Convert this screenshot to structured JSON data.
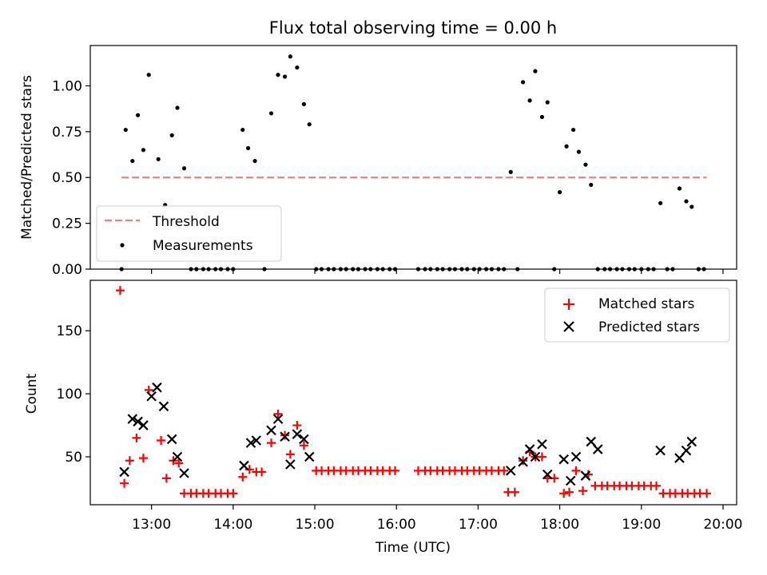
{
  "chart_data": [
    {
      "type": "scatter",
      "panel": "top",
      "title": "Flux total observing time = 0.00 h",
      "xlabel": "",
      "ylabel": "Matched/Predicted stars",
      "xlim": [
        "12:15",
        "20:10"
      ],
      "ylim": [
        0,
        1.22
      ],
      "yticks": [
        0.0,
        0.25,
        0.5,
        0.75,
        1.0
      ],
      "ytick_labels": [
        "0.00",
        "0.25",
        "0.50",
        "0.75",
        "1.00"
      ],
      "xticks": [
        "13:00",
        "14:00",
        "15:00",
        "16:00",
        "17:00",
        "18:00",
        "19:00",
        "20:00"
      ],
      "legend_position": "lower-left",
      "threshold": {
        "name": "Threshold",
        "y": 0.5,
        "x_start": "12:38",
        "x_end": "19:48",
        "color": "#f08080"
      },
      "series": [
        {
          "name": "Measurements",
          "color": "#000000",
          "marker": "dot",
          "points": [
            [
              "12:38",
              0.0
            ],
            [
              "12:41",
              0.76
            ],
            [
              "12:46",
              0.59
            ],
            [
              "12:50",
              0.84
            ],
            [
              "12:54",
              0.65
            ],
            [
              "12:58",
              1.06
            ],
            [
              "13:05",
              0.6
            ],
            [
              "13:10",
              0.35
            ],
            [
              "13:15",
              0.73
            ],
            [
              "13:19",
              0.88
            ],
            [
              "13:24",
              0.55
            ],
            [
              "13:29",
              0.0
            ],
            [
              "13:33",
              0.0
            ],
            [
              "13:38",
              0.0
            ],
            [
              "13:42",
              0.0
            ],
            [
              "13:47",
              0.0
            ],
            [
              "13:51",
              0.0
            ],
            [
              "13:56",
              0.0
            ],
            [
              "14:00",
              0.0
            ],
            [
              "14:07",
              0.76
            ],
            [
              "14:11",
              0.66
            ],
            [
              "14:16",
              0.59
            ],
            [
              "14:23",
              0.0
            ],
            [
              "14:28",
              0.85
            ],
            [
              "14:33",
              1.06
            ],
            [
              "14:38",
              1.05
            ],
            [
              "14:42",
              1.16
            ],
            [
              "14:47",
              1.1
            ],
            [
              "14:52",
              0.9
            ],
            [
              "14:56",
              0.79
            ],
            [
              "15:01",
              0.0
            ],
            [
              "15:05",
              0.0
            ],
            [
              "15:10",
              0.0
            ],
            [
              "15:14",
              0.0
            ],
            [
              "15:19",
              0.0
            ],
            [
              "15:23",
              0.0
            ],
            [
              "15:28",
              0.0
            ],
            [
              "15:32",
              0.0
            ],
            [
              "15:37",
              0.0
            ],
            [
              "15:41",
              0.0
            ],
            [
              "15:46",
              0.0
            ],
            [
              "15:50",
              0.0
            ],
            [
              "15:55",
              0.0
            ],
            [
              "15:59",
              0.0
            ],
            [
              "16:16",
              0.0
            ],
            [
              "16:21",
              0.0
            ],
            [
              "16:25",
              0.0
            ],
            [
              "16:30",
              0.0
            ],
            [
              "16:34",
              0.0
            ],
            [
              "16:39",
              0.0
            ],
            [
              "16:43",
              0.0
            ],
            [
              "16:48",
              0.0
            ],
            [
              "16:52",
              0.0
            ],
            [
              "16:57",
              0.0
            ],
            [
              "17:01",
              0.0
            ],
            [
              "17:06",
              0.0
            ],
            [
              "17:10",
              0.0
            ],
            [
              "17:15",
              0.0
            ],
            [
              "17:19",
              0.0
            ],
            [
              "17:24",
              0.53
            ],
            [
              "17:29",
              0.0
            ],
            [
              "17:33",
              1.02
            ],
            [
              "17:38",
              0.92
            ],
            [
              "17:42",
              1.08
            ],
            [
              "17:47",
              0.83
            ],
            [
              "17:51",
              0.91
            ],
            [
              "17:56",
              0.0
            ],
            [
              "18:00",
              0.42
            ],
            [
              "18:05",
              0.67
            ],
            [
              "18:10",
              0.76
            ],
            [
              "18:14",
              0.64
            ],
            [
              "18:19",
              0.57
            ],
            [
              "18:23",
              0.46
            ],
            [
              "18:28",
              0.0
            ],
            [
              "18:33",
              0.0
            ],
            [
              "18:37",
              0.0
            ],
            [
              "18:42",
              0.0
            ],
            [
              "18:46",
              0.0
            ],
            [
              "18:51",
              0.0
            ],
            [
              "18:55",
              0.0
            ],
            [
              "19:00",
              0.0
            ],
            [
              "19:05",
              0.0
            ],
            [
              "19:09",
              0.0
            ],
            [
              "19:14",
              0.36
            ],
            [
              "19:19",
              0.0
            ],
            [
              "19:23",
              0.0
            ],
            [
              "19:28",
              0.44
            ],
            [
              "19:33",
              0.37
            ],
            [
              "19:37",
              0.34
            ],
            [
              "19:42",
              0.0
            ],
            [
              "19:46",
              0.0
            ]
          ]
        }
      ]
    },
    {
      "type": "scatter",
      "panel": "bottom",
      "title": "",
      "xlabel": "Time (UTC)",
      "ylabel": "Count",
      "xlim": [
        "12:15",
        "20:10"
      ],
      "ylim": [
        12,
        190
      ],
      "yticks": [
        50,
        100,
        150
      ],
      "ytick_labels": [
        "50",
        "100",
        "150"
      ],
      "xticks": [
        "13:00",
        "14:00",
        "15:00",
        "16:00",
        "17:00",
        "18:00",
        "19:00",
        "20:00"
      ],
      "xtick_labels": [
        "13:00",
        "14:00",
        "15:00",
        "16:00",
        "17:00",
        "18:00",
        "19:00",
        "20:00"
      ],
      "legend_position": "top-right",
      "series": [
        {
          "name": "Matched stars",
          "color": "#ff0000",
          "marker": "plus",
          "points": [
            [
              "12:37",
              182
            ],
            [
              "12:40",
              29
            ],
            [
              "12:44",
              47
            ],
            [
              "12:49",
              65
            ],
            [
              "12:54",
              49
            ],
            [
              "12:58",
              103
            ],
            [
              "13:07",
              63
            ],
            [
              "13:11",
              33
            ],
            [
              "13:16",
              47
            ],
            [
              "13:20",
              45
            ],
            [
              "13:24",
              21
            ],
            [
              "13:29",
              21
            ],
            [
              "13:33",
              21
            ],
            [
              "13:38",
              21
            ],
            [
              "13:42",
              21
            ],
            [
              "13:47",
              21
            ],
            [
              "13:51",
              21
            ],
            [
              "13:56",
              21
            ],
            [
              "14:00",
              21
            ],
            [
              "14:07",
              34
            ],
            [
              "14:12",
              40
            ],
            [
              "14:17",
              38
            ],
            [
              "14:21",
              38
            ],
            [
              "14:28",
              61
            ],
            [
              "14:33",
              84
            ],
            [
              "14:38",
              67
            ],
            [
              "14:42",
              52
            ],
            [
              "14:47",
              75
            ],
            [
              "14:52",
              59
            ],
            [
              "15:01",
              39
            ],
            [
              "15:05",
              39
            ],
            [
              "15:10",
              39
            ],
            [
              "15:14",
              39
            ],
            [
              "15:19",
              39
            ],
            [
              "15:23",
              39
            ],
            [
              "15:28",
              39
            ],
            [
              "15:32",
              39
            ],
            [
              "15:37",
              39
            ],
            [
              "15:41",
              39
            ],
            [
              "15:46",
              39
            ],
            [
              "15:50",
              39
            ],
            [
              "15:55",
              39
            ],
            [
              "15:59",
              39
            ],
            [
              "16:16",
              39
            ],
            [
              "16:21",
              39
            ],
            [
              "16:25",
              39
            ],
            [
              "16:30",
              39
            ],
            [
              "16:34",
              39
            ],
            [
              "16:39",
              39
            ],
            [
              "16:43",
              39
            ],
            [
              "16:48",
              39
            ],
            [
              "16:52",
              39
            ],
            [
              "16:57",
              39
            ],
            [
              "17:01",
              39
            ],
            [
              "17:06",
              39
            ],
            [
              "17:10",
              39
            ],
            [
              "17:15",
              39
            ],
            [
              "17:19",
              39
            ],
            [
              "17:22",
              22
            ],
            [
              "17:27",
              22
            ],
            [
              "17:33",
              47
            ],
            [
              "17:38",
              54
            ],
            [
              "17:42",
              50
            ],
            [
              "17:47",
              50
            ],
            [
              "17:51",
              33
            ],
            [
              "17:56",
              33
            ],
            [
              "18:03",
              21
            ],
            [
              "18:07",
              22
            ],
            [
              "18:12",
              39
            ],
            [
              "18:17",
              23
            ],
            [
              "18:21",
              36
            ],
            [
              "18:26",
              27
            ],
            [
              "18:31",
              27
            ],
            [
              "18:35",
              27
            ],
            [
              "18:40",
              27
            ],
            [
              "18:44",
              27
            ],
            [
              "18:49",
              27
            ],
            [
              "18:53",
              27
            ],
            [
              "18:58",
              27
            ],
            [
              "19:02",
              27
            ],
            [
              "19:07",
              27
            ],
            [
              "19:11",
              27
            ],
            [
              "19:16",
              21
            ],
            [
              "19:21",
              21
            ],
            [
              "19:25",
              21
            ],
            [
              "19:30",
              21
            ],
            [
              "19:34",
              21
            ],
            [
              "19:39",
              21
            ],
            [
              "19:43",
              21
            ],
            [
              "19:48",
              21
            ]
          ]
        },
        {
          "name": "Predicted stars",
          "color": "#000000",
          "marker": "x",
          "points": [
            [
              "12:40",
              38
            ],
            [
              "12:46",
              80
            ],
            [
              "12:50",
              78
            ],
            [
              "12:54",
              75
            ],
            [
              "13:00",
              98
            ],
            [
              "13:04",
              105
            ],
            [
              "13:09",
              90
            ],
            [
              "13:15",
              64
            ],
            [
              "13:19",
              50
            ],
            [
              "13:24",
              37
            ],
            [
              "14:08",
              43
            ],
            [
              "14:13",
              61
            ],
            [
              "14:17",
              63
            ],
            [
              "14:28",
              71
            ],
            [
              "14:33",
              80
            ],
            [
              "14:38",
              66
            ],
            [
              "14:42",
              44
            ],
            [
              "14:47",
              68
            ],
            [
              "14:52",
              64
            ],
            [
              "14:56",
              50
            ],
            [
              "17:24",
              39
            ],
            [
              "17:33",
              46
            ],
            [
              "17:38",
              56
            ],
            [
              "17:42",
              50
            ],
            [
              "17:47",
              60
            ],
            [
              "17:51",
              36
            ],
            [
              "18:03",
              48
            ],
            [
              "18:08",
              31
            ],
            [
              "18:12",
              50
            ],
            [
              "18:19",
              35
            ],
            [
              "18:23",
              62
            ],
            [
              "18:28",
              56
            ],
            [
              "19:14",
              55
            ],
            [
              "19:28",
              49
            ],
            [
              "19:33",
              55
            ],
            [
              "19:37",
              62
            ]
          ]
        }
      ]
    }
  ]
}
